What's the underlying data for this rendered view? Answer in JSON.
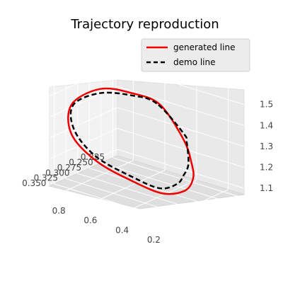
{
  "chart_data": {
    "type": "line",
    "title": "Trajectory reproduction",
    "projection": "3d",
    "grid": true,
    "legend_placement": "top-right",
    "axes": {
      "x": {
        "label": "",
        "ticks": [
          0.225,
          0.25,
          0.275,
          0.3,
          0.325,
          0.35
        ],
        "tick_labels": [
          "0.225",
          "0.250",
          "0.275",
          "0.300",
          "0.325",
          "0.350"
        ],
        "range": [
          0.215,
          0.36
        ]
      },
      "y": {
        "label": "",
        "ticks": [
          0.2,
          0.4,
          0.6,
          0.8
        ],
        "tick_labels": [
          "0.2",
          "0.4",
          "0.6",
          "0.8"
        ],
        "range": [
          0.1,
          0.9
        ]
      },
      "z": {
        "label": "",
        "ticks": [
          1.1,
          1.2,
          1.3,
          1.4,
          1.5
        ],
        "tick_labels": [
          "1.1",
          "1.2",
          "1.3",
          "1.4",
          "1.5"
        ],
        "range": [
          1.07,
          1.57
        ]
      }
    },
    "series": [
      {
        "name": "generated line",
        "color": "#ee0000",
        "style": "solid",
        "points": [
          [
            0.3,
            0.38,
            1.52
          ],
          [
            0.31,
            0.53,
            1.55
          ],
          [
            0.32,
            0.7,
            1.54
          ],
          [
            0.33,
            0.85,
            1.44
          ],
          [
            0.33,
            0.85,
            1.3
          ],
          [
            0.32,
            0.72,
            1.19
          ],
          [
            0.31,
            0.52,
            1.13
          ],
          [
            0.3,
            0.36,
            1.1
          ],
          [
            0.29,
            0.25,
            1.13
          ],
          [
            0.29,
            0.2,
            1.2
          ],
          [
            0.29,
            0.21,
            1.27
          ],
          [
            0.29,
            0.26,
            1.37
          ],
          [
            0.3,
            0.38,
            1.52
          ]
        ]
      },
      {
        "name": "demo line",
        "color": "#000000",
        "style": "dashed",
        "points": [
          [
            0.3,
            0.4,
            1.52
          ],
          [
            0.31,
            0.52,
            1.54
          ],
          [
            0.32,
            0.7,
            1.52
          ],
          [
            0.33,
            0.84,
            1.44
          ],
          [
            0.33,
            0.83,
            1.32
          ],
          [
            0.32,
            0.72,
            1.21
          ],
          [
            0.31,
            0.52,
            1.15
          ],
          [
            0.3,
            0.38,
            1.12
          ],
          [
            0.29,
            0.3,
            1.15
          ],
          [
            0.29,
            0.26,
            1.2
          ],
          [
            0.29,
            0.23,
            1.26
          ],
          [
            0.29,
            0.24,
            1.36
          ],
          [
            0.29,
            0.26,
            1.4
          ],
          [
            0.3,
            0.4,
            1.52
          ]
        ]
      }
    ]
  }
}
